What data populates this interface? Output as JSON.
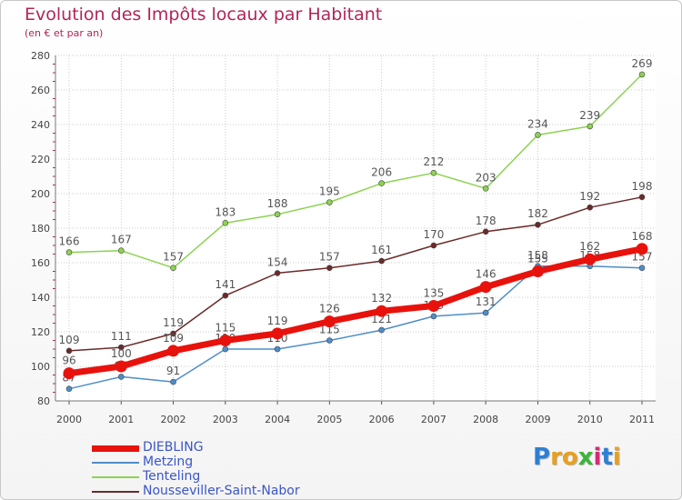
{
  "title": "Evolution des Impôts locaux par Habitant",
  "subtitle": "(en € et par an)",
  "logo_text": [
    "P",
    "r",
    "o",
    "x",
    "i",
    "t",
    "i"
  ],
  "logo_colors": [
    "#2e7fd4",
    "#e8a020",
    "#e8a020",
    "#3cb43c",
    "#d42a7a",
    "#2e7fd4",
    "#e8a020"
  ],
  "chart_data": {
    "type": "line",
    "title": "Evolution des Impôts locaux par Habitant",
    "subtitle": "(en € et par an)",
    "xlabel": "",
    "ylabel": "",
    "x": [
      "2000",
      "2001",
      "2002",
      "2003",
      "2004",
      "2005",
      "2006",
      "2007",
      "2008",
      "2009",
      "2010",
      "2011"
    ],
    "ylim": [
      80,
      280
    ],
    "yticks": [
      "80",
      "100",
      "120",
      "140",
      "160",
      "180",
      "200",
      "220",
      "240",
      "260",
      "280"
    ],
    "grid": true,
    "series": [
      {
        "name": "Metzing",
        "color": "#4e8dc9",
        "values": [
          87,
          94,
          91,
          110,
          110,
          115,
          121,
          129,
          131,
          158,
          158,
          157
        ]
      },
      {
        "name": "Tenteling",
        "color": "#8cd350",
        "values": [
          166,
          167,
          157,
          183,
          188,
          195,
          206,
          212,
          203,
          234,
          239,
          269
        ]
      },
      {
        "name": "Nousseviller-Saint-Nabor",
        "color": "#6b2a2a",
        "values": [
          109,
          111,
          119,
          141,
          154,
          157,
          161,
          170,
          178,
          182,
          192,
          198
        ]
      },
      {
        "name": "DIEBLING",
        "color": "#e8120c",
        "values": [
          96,
          100,
          109,
          115,
          119,
          126,
          132,
          135,
          146,
          155,
          162,
          168
        ]
      }
    ],
    "legend": [
      {
        "name": "DIEBLING",
        "color": "#e8120c"
      },
      {
        "name": "Metzing",
        "color": "#4e8dc9"
      },
      {
        "name": "Tenteling",
        "color": "#8cd350"
      },
      {
        "name": "Nousseviller-Saint-Nabor",
        "color": "#6b2a2a"
      }
    ],
    "legend_position": "bottom-left"
  }
}
